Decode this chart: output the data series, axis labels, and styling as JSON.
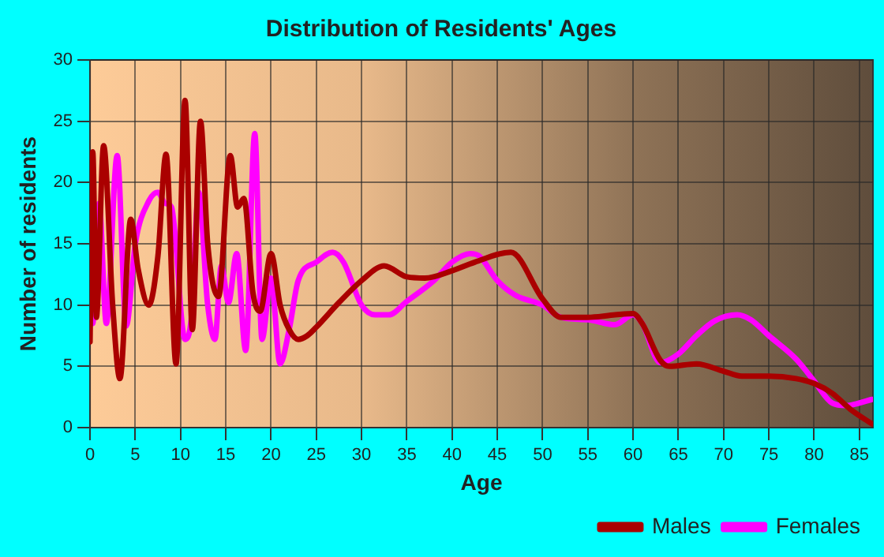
{
  "chart_data": {
    "type": "line",
    "title": "Distribution of Residents' Ages",
    "xlabel": "Age",
    "ylabel": "Number of residents",
    "xlim": [
      0,
      86.5
    ],
    "xticks": [
      0,
      5,
      10,
      15,
      20,
      25,
      30,
      35,
      40,
      45,
      50,
      55,
      60,
      65,
      70,
      75,
      80,
      85
    ],
    "ylim": [
      0,
      30
    ],
    "yticks": [
      0,
      5,
      10,
      15,
      20,
      25,
      30
    ],
    "grid": true,
    "legend": "bottom right",
    "marker": "none",
    "line_style": "solid",
    "series": [
      {
        "name": "Males",
        "color": "#aa0000",
        "x": [
          0,
          0.3,
          0.7,
          1.5,
          2.5,
          3.3,
          4.5,
          5.3,
          6.5,
          7.5,
          8.4,
          9.5,
          10.5,
          11.3,
          12.2,
          13,
          14.2,
          15.5,
          16.3,
          17,
          18,
          18.8,
          20,
          21,
          22,
          23,
          24,
          25,
          27.5,
          30,
          32.5,
          35,
          37,
          40,
          42.5,
          46.5,
          50,
          52,
          55,
          58,
          60,
          61,
          63,
          64,
          67,
          70,
          72,
          75,
          78,
          80,
          82,
          84,
          86.4
        ],
        "values": [
          7,
          22.5,
          9,
          23,
          10,
          4,
          17,
          13,
          10,
          14,
          22.3,
          5.2,
          26.7,
          8,
          25,
          15,
          10.7,
          22.2,
          18,
          18.7,
          11,
          9.5,
          14.2,
          10,
          8,
          7.2,
          7.5,
          8.2,
          10.2,
          12,
          13.2,
          12.3,
          12.2,
          12.8,
          13.5,
          14.3,
          10.5,
          9,
          9,
          9.2,
          9.3,
          8.5,
          5.5,
          5,
          5.2,
          4.6,
          4.2,
          4.2,
          4,
          3.6,
          2.8,
          1.5,
          0.3
        ]
      },
      {
        "name": "Females",
        "color": "#ff00ff",
        "x": [
          0,
          0.3,
          1,
          1.8,
          3,
          4,
          5,
          6.5,
          7.5,
          8.3,
          9,
          10.5,
          11.2,
          12,
          13,
          13.8,
          14.5,
          15.3,
          16.2,
          17.2,
          18.2,
          19,
          20,
          21,
          22,
          23,
          25,
          26.8,
          28,
          30,
          31.5,
          33,
          35,
          38,
          40,
          42,
          43,
          45,
          47,
          50,
          52,
          55,
          58,
          60,
          61,
          63,
          65,
          67,
          69,
          71.5,
          73,
          75,
          78,
          80,
          82,
          83.5,
          86.4
        ],
        "values": [
          9,
          8.5,
          18.3,
          8.5,
          22.2,
          8.3,
          15,
          18.5,
          19.2,
          18.3,
          18,
          7.2,
          9,
          19.2,
          10,
          7.2,
          13.2,
          10.2,
          14.2,
          6.3,
          24,
          7.2,
          12.2,
          5.2,
          8,
          12,
          13.5,
          14.3,
          13.5,
          10,
          9.2,
          9.2,
          10.3,
          12,
          13.5,
          14.2,
          14,
          12,
          10.8,
          10,
          9,
          8.8,
          8.4,
          9.2,
          8.5,
          5.3,
          6,
          7.5,
          8.7,
          9.2,
          8.8,
          7.5,
          5.6,
          3.8,
          2,
          1.8,
          2.3
        ]
      }
    ]
  }
}
